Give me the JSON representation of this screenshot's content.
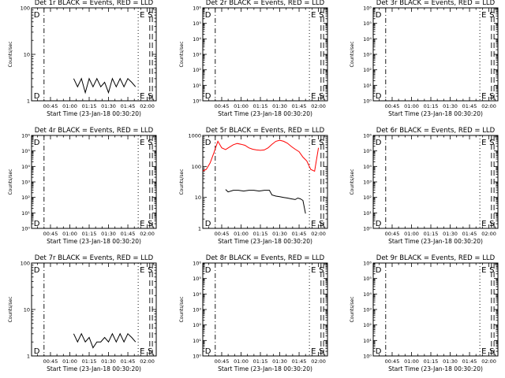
{
  "figure": {
    "xlabel": "Start Time (23-Jan-18 00:30:20)",
    "ylabel": "Counts/sec",
    "x_ticks": [
      "00:45",
      "01:00",
      "01:15",
      "01:30",
      "01:45",
      "02:00"
    ],
    "markers": [
      "D",
      "E",
      "S"
    ],
    "colors": {
      "events": "#000000",
      "lld": "#ff0000",
      "axes": "#000000"
    }
  },
  "chart_data": [
    {
      "type": "line",
      "title": "Det 1r BLACK = Events, RED = LLD",
      "ylim": [
        1,
        100
      ],
      "y_scale": "log",
      "y_ticks": [
        {
          "v": 1,
          "label": "1"
        },
        {
          "v": 10,
          "label": "10"
        },
        {
          "v": 100,
          "label": "100"
        }
      ],
      "series": [
        {
          "color": "#000000",
          "x": [
            "01:03",
            "01:06",
            "01:09",
            "01:12",
            "01:15",
            "01:18",
            "01:21",
            "01:24",
            "01:27",
            "01:30",
            "01:33",
            "01:36",
            "01:39",
            "01:42",
            "01:45",
            "01:48",
            "01:51"
          ],
          "values": [
            3,
            2,
            3,
            1.5,
            3,
            2,
            3,
            2,
            2.5,
            1.5,
            3,
            2,
            3,
            2,
            3,
            2.5,
            2
          ]
        }
      ]
    },
    {
      "type": "line",
      "title": "Det 2r BLACK = Events, RED = LLD",
      "ylim": [
        1,
        1000000
      ],
      "y_scale": "log",
      "y_ticks": [
        {
          "v": 1,
          "label": "10⁰"
        },
        {
          "v": 10,
          "label": "10¹"
        },
        {
          "v": 100,
          "label": "10²"
        },
        {
          "v": 1000,
          "label": "10³"
        },
        {
          "v": 10000,
          "label": "10⁴"
        },
        {
          "v": 100000,
          "label": "10⁵"
        },
        {
          "v": 1000000,
          "label": "10⁶"
        }
      ],
      "series": []
    },
    {
      "type": "line",
      "title": "Det 3r BLACK = Events, RED = LLD",
      "ylim": [
        1,
        1000000
      ],
      "y_scale": "log",
      "y_ticks": [
        {
          "v": 1,
          "label": "10⁰"
        },
        {
          "v": 10,
          "label": "10¹"
        },
        {
          "v": 100,
          "label": "10²"
        },
        {
          "v": 1000,
          "label": "10³"
        },
        {
          "v": 10000,
          "label": "10⁴"
        },
        {
          "v": 100000,
          "label": "10⁵"
        },
        {
          "v": 1000000,
          "label": "10⁶"
        }
      ],
      "series": []
    },
    {
      "type": "line",
      "title": "Det 4r BLACK = Events, RED = LLD",
      "ylim": [
        1,
        1000000
      ],
      "y_scale": "log",
      "y_ticks": [
        {
          "v": 1,
          "label": "10⁰"
        },
        {
          "v": 10,
          "label": "10¹"
        },
        {
          "v": 100,
          "label": "10²"
        },
        {
          "v": 1000,
          "label": "10³"
        },
        {
          "v": 10000,
          "label": "10⁴"
        },
        {
          "v": 100000,
          "label": "10⁵"
        },
        {
          "v": 1000000,
          "label": "10⁶"
        }
      ],
      "series": []
    },
    {
      "type": "line",
      "title": "Det 5r BLACK = Events, RED = LLD",
      "ylim": [
        1,
        1000
      ],
      "y_scale": "log",
      "y_ticks": [
        {
          "v": 1,
          "label": "1"
        },
        {
          "v": 10,
          "label": "10"
        },
        {
          "v": 100,
          "label": "100"
        },
        {
          "v": 1000,
          "label": "1000"
        }
      ],
      "series": [
        {
          "color": "#ff0000",
          "x": [
            "00:30",
            "00:33",
            "00:36",
            "00:39",
            "00:42",
            "00:45",
            "00:48",
            "00:51",
            "00:54",
            "00:57",
            "01:00",
            "01:03",
            "01:06",
            "01:09",
            "01:12",
            "01:15",
            "01:18",
            "01:21",
            "01:24",
            "01:27",
            "01:30",
            "01:33",
            "01:36",
            "01:39",
            "01:42",
            "01:45",
            "01:48",
            "01:51",
            "01:54",
            "01:57",
            "02:00"
          ],
          "values": [
            70,
            80,
            130,
            280,
            650,
            400,
            350,
            420,
            500,
            550,
            520,
            480,
            400,
            360,
            340,
            330,
            340,
            400,
            520,
            650,
            700,
            650,
            560,
            440,
            360,
            300,
            200,
            150,
            80,
            70,
            400
          ]
        },
        {
          "color": "#000000",
          "x": [
            "00:48",
            "00:50",
            "00:54",
            "00:58",
            "01:02",
            "01:06",
            "01:10",
            "01:14",
            "01:18",
            "01:22",
            "01:24",
            "01:27",
            "01:30",
            "01:33",
            "01:36",
            "01:39",
            "01:42",
            "01:44",
            "01:46",
            "01:48",
            "01:50"
          ],
          "values": [
            18,
            15,
            17,
            17,
            16,
            17,
            17,
            16,
            17,
            17,
            12,
            11,
            10.5,
            10,
            9.5,
            9,
            8.5,
            9.5,
            9,
            8,
            3
          ]
        }
      ]
    },
    {
      "type": "line",
      "title": "Det 6r BLACK = Events, RED = LLD",
      "ylim": [
        1,
        1000000
      ],
      "y_scale": "log",
      "y_ticks": [
        {
          "v": 1,
          "label": "10⁰"
        },
        {
          "v": 10,
          "label": "10¹"
        },
        {
          "v": 100,
          "label": "10²"
        },
        {
          "v": 1000,
          "label": "10³"
        },
        {
          "v": 10000,
          "label": "10⁴"
        },
        {
          "v": 100000,
          "label": "10⁵"
        },
        {
          "v": 1000000,
          "label": "10⁶"
        }
      ],
      "series": []
    },
    {
      "type": "line",
      "title": "Det 7r BLACK = Events, RED = LLD",
      "ylim": [
        1,
        100
      ],
      "y_scale": "log",
      "y_ticks": [
        {
          "v": 1,
          "label": "1"
        },
        {
          "v": 10,
          "label": "10"
        },
        {
          "v": 100,
          "label": "100"
        }
      ],
      "series": [
        {
          "color": "#000000",
          "x": [
            "01:03",
            "01:06",
            "01:09",
            "01:12",
            "01:15",
            "01:18",
            "01:21",
            "01:24",
            "01:27",
            "01:30",
            "01:33",
            "01:36",
            "01:39",
            "01:42",
            "01:45",
            "01:48",
            "01:51"
          ],
          "values": [
            3,
            2,
            3,
            2,
            2.5,
            1.5,
            2,
            2,
            2.5,
            2,
            3,
            2,
            3,
            2,
            3,
            2.5,
            2
          ]
        }
      ]
    },
    {
      "type": "line",
      "title": "Det 8r BLACK = Events, RED = LLD",
      "ylim": [
        1,
        1000000
      ],
      "y_scale": "log",
      "y_ticks": [
        {
          "v": 1,
          "label": "10⁰"
        },
        {
          "v": 10,
          "label": "10¹"
        },
        {
          "v": 100,
          "label": "10²"
        },
        {
          "v": 1000,
          "label": "10³"
        },
        {
          "v": 10000,
          "label": "10⁴"
        },
        {
          "v": 100000,
          "label": "10⁵"
        },
        {
          "v": 1000000,
          "label": "10⁶"
        }
      ],
      "series": []
    },
    {
      "type": "line",
      "title": "Det 9r BLACK = Events, RED = LLD",
      "ylim": [
        1,
        1000000
      ],
      "y_scale": "log",
      "y_ticks": [
        {
          "v": 1,
          "label": "10⁰"
        },
        {
          "v": 10,
          "label": "10¹"
        },
        {
          "v": 100,
          "label": "10²"
        },
        {
          "v": 1000,
          "label": "10³"
        },
        {
          "v": 10000,
          "label": "10⁴"
        },
        {
          "v": 100000,
          "label": "10⁵"
        },
        {
          "v": 1000000,
          "label": "10⁶"
        }
      ],
      "series": []
    }
  ]
}
